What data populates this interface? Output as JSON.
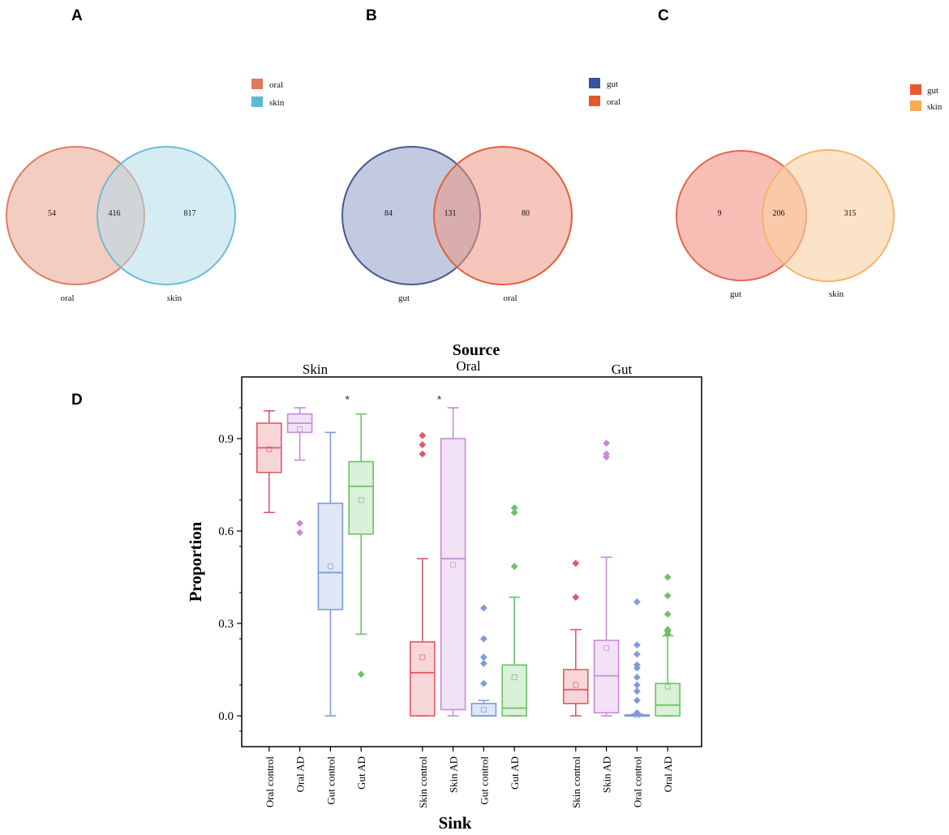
{
  "panels": {
    "A": {
      "label": "A",
      "legend": [
        {
          "name": "oral",
          "color": "#e07a5b"
        },
        {
          "name": "skin",
          "color": "#5fb8d4"
        }
      ],
      "sets": [
        {
          "name": "oral",
          "stroke": "#de7e66",
          "fill": "#e9a28f"
        },
        {
          "name": "skin",
          "stroke": "#6cbcd6",
          "fill": "#b4dde9"
        }
      ],
      "counts": {
        "left_only": "54",
        "overlap": "416",
        "right_only": "817"
      }
    },
    "B": {
      "label": "B",
      "legend": [
        {
          "name": "gut",
          "color": "#34569a"
        },
        {
          "name": "oral",
          "color": "#dd5a2e"
        }
      ],
      "sets": [
        {
          "name": "gut",
          "stroke": "#485a93",
          "fill": "#8595bf"
        },
        {
          "name": "oral",
          "stroke": "#e0603c",
          "fill": "#ef9583"
        }
      ],
      "counts": {
        "left_only": "84",
        "overlap": "131",
        "right_only": "80"
      }
    },
    "C": {
      "label": "C",
      "legend": [
        {
          "name": "gut",
          "color": "#e8582f"
        },
        {
          "name": "skin",
          "color": "#f6ac52"
        }
      ],
      "sets": [
        {
          "name": "gut",
          "stroke": "#e8644f",
          "fill": "#f49a8e"
        },
        {
          "name": "skin",
          "stroke": "#f5b567",
          "fill": "#fad0a1"
        }
      ],
      "counts": {
        "left_only": "9",
        "overlap": "206",
        "right_only": "315"
      }
    },
    "D": {
      "label": "D"
    }
  },
  "chart_data": {
    "type": "box",
    "title": "Source",
    "xlabel": "Sink",
    "ylabel": "Proportion",
    "ylim": [
      -0.1,
      1.1
    ],
    "yticks": [
      0.0,
      0.3,
      0.6,
      0.9
    ],
    "ytick_labels": [
      "0.0",
      "0.3",
      "0.6",
      "0.9"
    ],
    "groups": [
      {
        "name": "Skin",
        "boxes": [
          {
            "label": "Oral control",
            "color": "#e05a66",
            "q1": 0.79,
            "median": 0.87,
            "q3": 0.95,
            "whisker_low": 0.66,
            "whisker_high": 0.99,
            "mean": 0.865,
            "outliers": []
          },
          {
            "label": "Oral AD",
            "color": "#c98ad8",
            "q1": 0.92,
            "median": 0.95,
            "q3": 0.98,
            "whisker_low": 0.83,
            "whisker_high": 1.0,
            "mean": 0.93,
            "outliers": [
              0.625,
              0.595
            ]
          },
          {
            "label": "Gut control",
            "color": "#7f9cd8",
            "q1": 0.345,
            "median": 0.465,
            "q3": 0.69,
            "whisker_low": 0.0,
            "whisker_high": 0.92,
            "mean": 0.485,
            "outliers": []
          },
          {
            "label": "Gut AD",
            "color": "#6cc266",
            "q1": 0.59,
            "median": 0.745,
            "q3": 0.825,
            "whisker_low": 0.265,
            "whisker_high": 0.98,
            "mean": 0.7,
            "outliers": [
              0.135
            ]
          }
        ]
      },
      {
        "name": "Oral",
        "boxes": [
          {
            "label": "Skin control",
            "color": "#e05a66",
            "q1": 0.0,
            "median": 0.14,
            "q3": 0.24,
            "whisker_low": 0.0,
            "whisker_high": 0.51,
            "mean": 0.19,
            "outliers": [
              0.91,
              0.88,
              0.85
            ]
          },
          {
            "label": "Skin AD",
            "color": "#c98ad8",
            "q1": 0.02,
            "median": 0.51,
            "q3": 0.9,
            "whisker_low": 0.0,
            "whisker_high": 1.0,
            "mean": 0.49,
            "outliers": []
          },
          {
            "label": "Gut control",
            "color": "#7f9cd8",
            "q1": 0.0,
            "median": 0.0,
            "q3": 0.04,
            "whisker_low": 0.0,
            "whisker_high": 0.05,
            "mean": 0.02,
            "outliers": [
              0.35,
              0.25,
              0.19,
              0.17,
              0.105
            ]
          },
          {
            "label": "Gut AD",
            "color": "#6cc266",
            "q1": 0.0,
            "median": 0.025,
            "q3": 0.165,
            "whisker_low": 0.0,
            "whisker_high": 0.385,
            "mean": 0.125,
            "outliers": [
              0.675,
              0.66,
              0.485
            ]
          }
        ]
      },
      {
        "name": "Gut",
        "boxes": [
          {
            "label": "Skin control",
            "color": "#e05a66",
            "q1": 0.04,
            "median": 0.085,
            "q3": 0.15,
            "whisker_low": 0.0,
            "whisker_high": 0.28,
            "mean": 0.1,
            "outliers": [
              0.495,
              0.385
            ]
          },
          {
            "label": "Skin AD",
            "color": "#c98ad8",
            "q1": 0.01,
            "median": 0.13,
            "q3": 0.245,
            "whisker_low": 0.0,
            "whisker_high": 0.515,
            "mean": 0.22,
            "outliers": [
              0.885,
              0.85,
              0.84
            ]
          },
          {
            "label": "Oral control",
            "color": "#7f9cd8",
            "q1": 0.0,
            "median": 0.0,
            "q3": 0.003,
            "whisker_low": 0.0,
            "whisker_high": 0.006,
            "mean": 0.002,
            "outliers": [
              0.37,
              0.23,
              0.2,
              0.165,
              0.155,
              0.125,
              0.1,
              0.08,
              0.05,
              0.01
            ]
          },
          {
            "label": "Oral AD",
            "color": "#6cc266",
            "q1": 0.0,
            "median": 0.035,
            "q3": 0.105,
            "whisker_low": 0.0,
            "whisker_high": 0.26,
            "mean": 0.095,
            "outliers": [
              0.45,
              0.39,
              0.33,
              0.28,
              0.275,
              0.265
            ]
          }
        ]
      }
    ],
    "annotations": [
      {
        "text": "*",
        "group": "Skin",
        "box": "Gut AD",
        "y": 1.03
      },
      {
        "text": "*",
        "group": "Oral",
        "box": "Skin AD",
        "y": 1.03
      }
    ]
  }
}
